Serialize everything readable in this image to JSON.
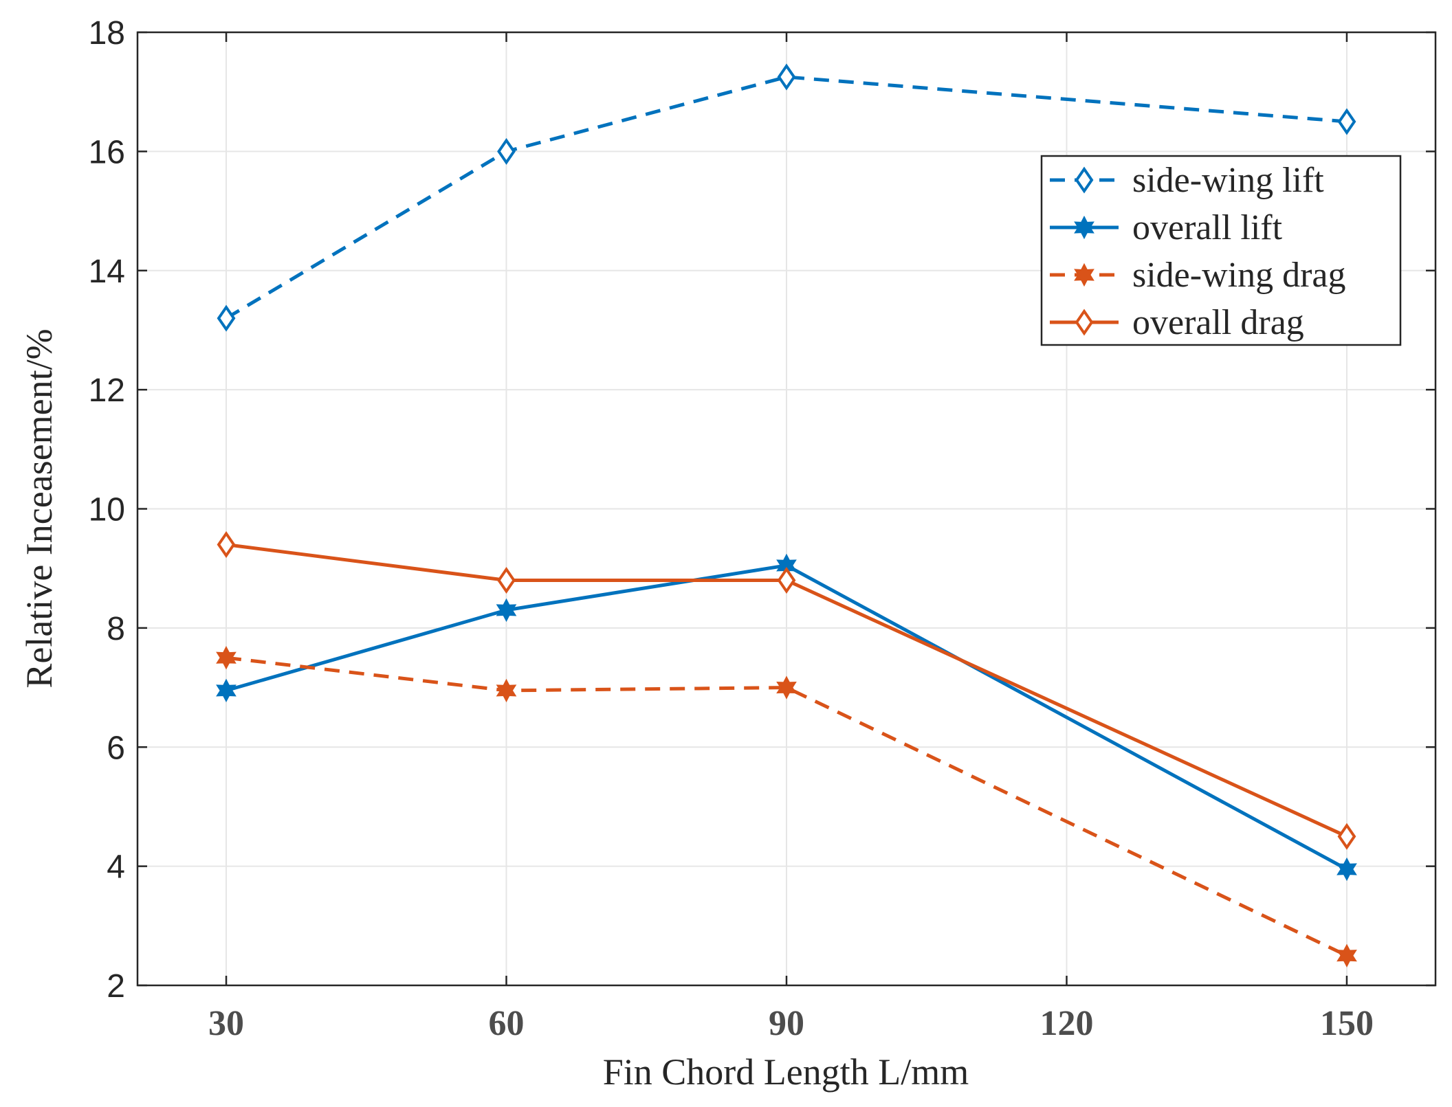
{
  "chart_data": {
    "type": "line",
    "title": "",
    "xlabel": "Fin Chord Length L/mm",
    "ylabel": "Relative Inceasement/%",
    "x": [
      30,
      60,
      90,
      150
    ],
    "xticks": [
      30,
      60,
      90,
      120,
      150
    ],
    "xlim": [
      20.5,
      159.5
    ],
    "yticks": [
      2,
      4,
      6,
      8,
      10,
      12,
      14,
      16,
      18
    ],
    "ylim": [
      2,
      18
    ],
    "grid": true,
    "legend_position": "top-right",
    "series": [
      {
        "name": "side-wing lift",
        "values": [
          13.2,
          16.0,
          17.25,
          16.5
        ],
        "color": "#0072BD",
        "line": "dashed",
        "marker": "diamond"
      },
      {
        "name": "overall lift",
        "values": [
          6.95,
          8.3,
          9.05,
          3.95
        ],
        "color": "#0072BD",
        "line": "solid",
        "marker": "star"
      },
      {
        "name": "side-wing drag",
        "values": [
          7.5,
          6.95,
          7.0,
          2.5
        ],
        "color": "#D95319",
        "line": "dashed",
        "marker": "star"
      },
      {
        "name": "overall drag",
        "values": [
          9.4,
          8.8,
          8.8,
          4.5
        ],
        "color": "#D95319",
        "line": "solid",
        "marker": "diamond"
      }
    ]
  }
}
